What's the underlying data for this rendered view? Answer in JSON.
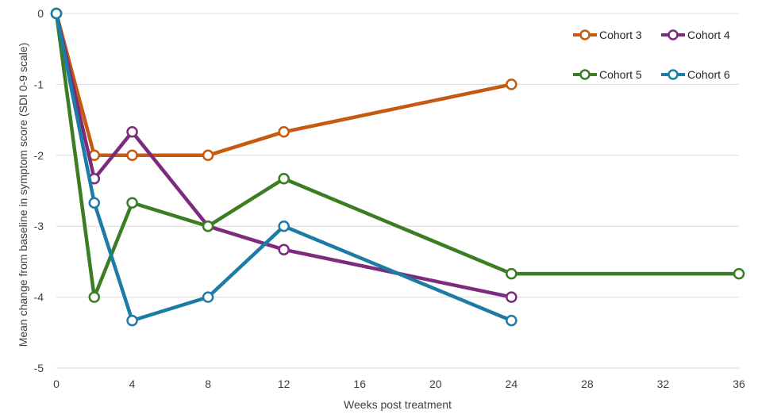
{
  "chart_data": {
    "type": "line",
    "title": "",
    "xlabel": "Weeks post treatment",
    "ylabel": "Mean change from baseline in symptom score (SDI 0-9 scale)",
    "xlim": [
      0,
      36
    ],
    "ylim": [
      -5,
      0
    ],
    "x_ticks": [
      0,
      4,
      8,
      12,
      16,
      20,
      24,
      28,
      32,
      36
    ],
    "y_ticks": [
      0,
      -1,
      -2,
      -3,
      -4,
      -5
    ],
    "grid": "horizontal",
    "legend_position": "top-right",
    "series": [
      {
        "name": "Cohort 3",
        "color": "#c55a11",
        "points": [
          [
            0,
            0
          ],
          [
            2,
            -2
          ],
          [
            4,
            -2
          ],
          [
            8,
            -2
          ],
          [
            12,
            -1.67
          ],
          [
            24,
            -1
          ]
        ]
      },
      {
        "name": "Cohort 4",
        "color": "#7b2c7c",
        "points": [
          [
            0,
            0
          ],
          [
            2,
            -2.33
          ],
          [
            4,
            -1.67
          ],
          [
            8,
            -3
          ],
          [
            12,
            -3.33
          ],
          [
            24,
            -4
          ]
        ]
      },
      {
        "name": "Cohort 5",
        "color": "#3a7d22",
        "points": [
          [
            0,
            0
          ],
          [
            2,
            -4
          ],
          [
            4,
            -2.67
          ],
          [
            8,
            -3
          ],
          [
            12,
            -2.33
          ],
          [
            24,
            -3.67
          ],
          [
            36,
            -3.67
          ]
        ]
      },
      {
        "name": "Cohort 6",
        "color": "#1c7ca6",
        "points": [
          [
            0,
            0
          ],
          [
            2,
            -2.67
          ],
          [
            4,
            -4.33
          ],
          [
            8,
            -4
          ],
          [
            12,
            -3
          ],
          [
            24,
            -4.33
          ]
        ]
      }
    ]
  }
}
